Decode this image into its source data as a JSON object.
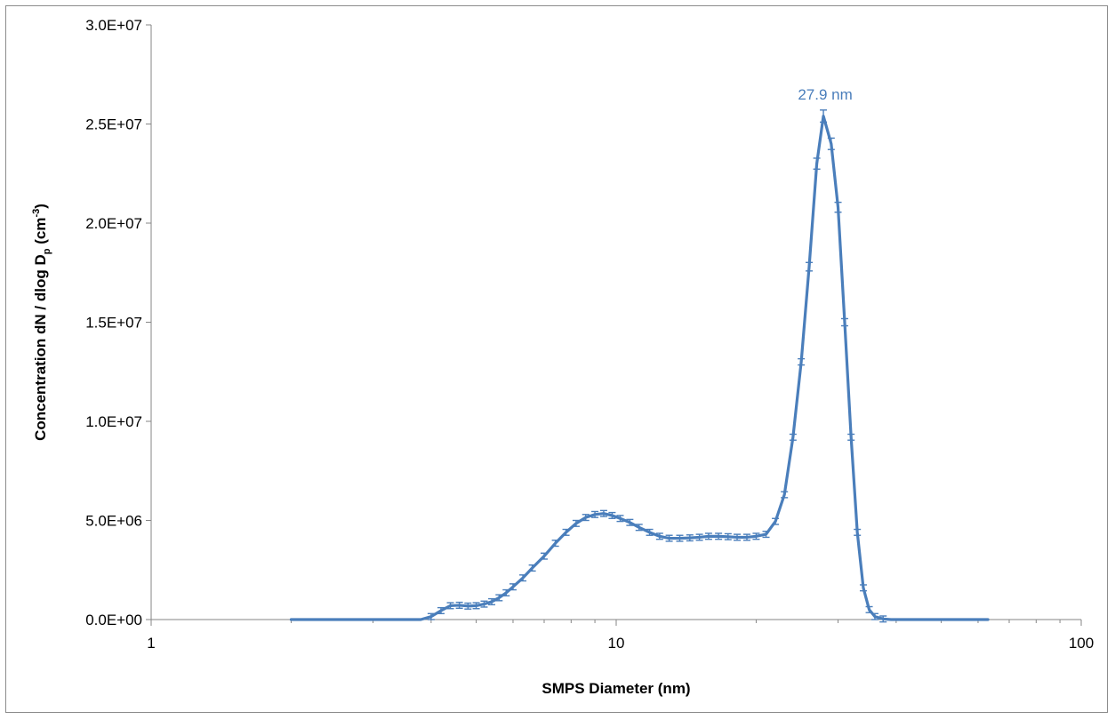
{
  "chart_data": {
    "type": "line",
    "title": "",
    "xlabel": "SMPS Diameter (nm)",
    "ylabel": {
      "main": "Concentration  dN / dlog D",
      "sub": "p",
      "unit_open": " (cm",
      "sup": "-3",
      "unit_close": ")"
    },
    "x_scale": "log",
    "xlim": [
      1,
      100
    ],
    "ylim": [
      0,
      30000000
    ],
    "x_ticks": [
      {
        "value": 1,
        "label": "1"
      },
      {
        "value": 10,
        "label": "10"
      },
      {
        "value": 100,
        "label": "100"
      }
    ],
    "y_ticks": [
      {
        "value": 0,
        "label": "0.0E+00"
      },
      {
        "value": 5000000,
        "label": "5.0E+06"
      },
      {
        "value": 10000000,
        "label": "1.0E+07"
      },
      {
        "value": 15000000,
        "label": "1.5E+07"
      },
      {
        "value": 20000000,
        "label": "2.0E+07"
      },
      {
        "value": 25000000,
        "label": "2.5E+07"
      },
      {
        "value": 30000000,
        "label": "3.0E+07"
      }
    ],
    "grid": false,
    "legend": "none",
    "series_color": "#4a7ebb",
    "annotations": [
      {
        "text": "27.9 nm",
        "x": 27.9,
        "y": 26500000,
        "color": "#4a7ebb"
      }
    ],
    "series": [
      {
        "x": [
          2.0,
          2.5,
          3.0,
          3.5,
          3.8,
          4.0,
          4.2,
          4.4,
          4.6,
          4.8,
          5.0,
          5.2,
          5.4,
          5.6,
          5.8,
          6.0,
          6.3,
          6.6,
          7.0,
          7.4,
          7.8,
          8.2,
          8.6,
          9.0,
          9.4,
          9.8,
          10.2,
          10.7,
          11.2,
          11.8,
          12.4,
          13.0,
          13.7,
          14.4,
          15.1,
          15.8,
          16.6,
          17.4,
          18.2,
          19.1,
          20.0,
          21.0,
          22.0,
          23.0,
          24.0,
          25.0,
          26.0,
          27.0,
          27.9,
          29.0,
          30.0,
          31.0,
          32.0,
          33.0,
          34.0,
          35.0,
          36.0,
          37.5,
          39.0,
          42.0,
          50.0,
          63.0
        ],
        "values": [
          0,
          0,
          0,
          0,
          0,
          150000,
          450000,
          700000,
          720000,
          680000,
          700000,
          780000,
          900000,
          1100000,
          1350000,
          1650000,
          2100000,
          2600000,
          3200000,
          3850000,
          4400000,
          4850000,
          5150000,
          5300000,
          5350000,
          5250000,
          5100000,
          4900000,
          4650000,
          4400000,
          4200000,
          4100000,
          4100000,
          4120000,
          4150000,
          4200000,
          4200000,
          4180000,
          4150000,
          4150000,
          4200000,
          4300000,
          4950000,
          6300000,
          9200000,
          13000000,
          17800000,
          23000000,
          25400000,
          24000000,
          20800000,
          15000000,
          9200000,
          4400000,
          1600000,
          500000,
          150000,
          30000,
          0,
          0,
          0,
          0
        ]
      }
    ]
  }
}
